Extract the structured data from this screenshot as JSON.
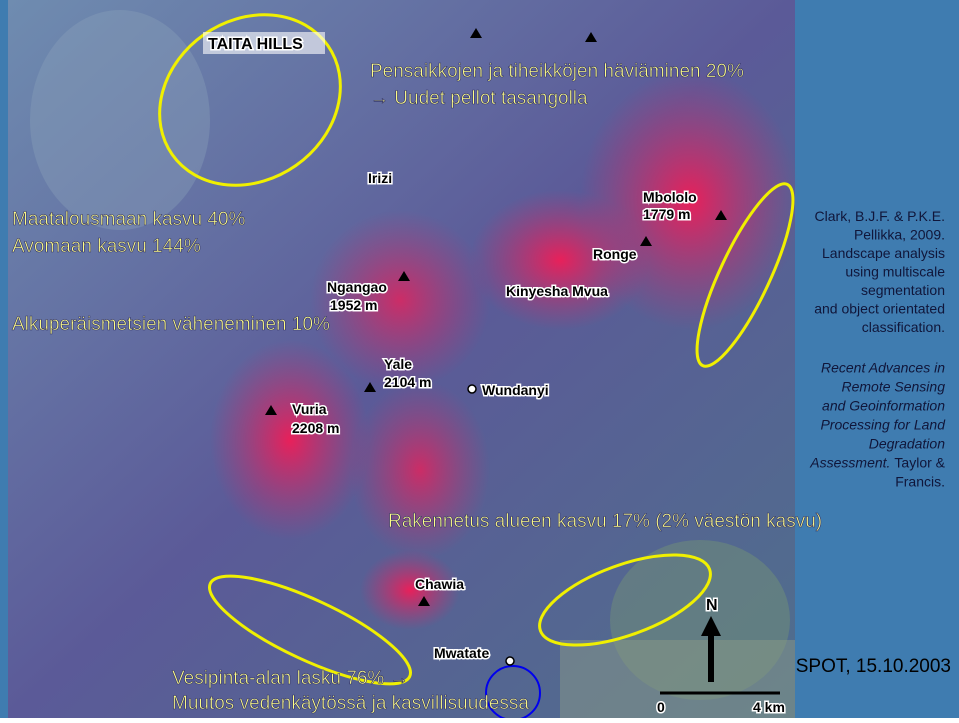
{
  "map": {
    "region_label": "TAITA HILLS",
    "places": [
      "Irizi",
      "Ngangao",
      "1952 m",
      "Yale",
      "2104 m",
      "Vuria",
      "2208 m",
      "Wundanyi",
      "Kinyesha Mvua",
      "Ronge",
      "Mbololo",
      "1779 m",
      "Chawia",
      "Mwatate"
    ],
    "north": "N",
    "scale": [
      "0",
      "4 km"
    ],
    "image_source": "SPOT, 15.10.2003"
  },
  "annotations": [
    "Pensaikkojen ja tiheikköjen häviäminen 20%",
    "→ Uudet pellot tasangolla",
    "Maatalousmaan kasvu 40%",
    "Avomaan kasvu 144%",
    "Alkuperäismetsien väheneminen 10%",
    "Rakennetus alueen kasvu 17% (2% väestön kasvu)",
    "Vesipinta-alan lasku 76% →",
    "Muutos vedenkäytössä ja kasvillisuudessa"
  ],
  "citation": {
    "lines": [
      "Clark, B.J.F. & P.K.E.",
      "Pellikka, 2009.",
      "Landscape analysis",
      "using multiscale",
      "segmentation",
      "and object orientated",
      "classification."
    ],
    "book_lines": [
      "Recent Advances in",
      "Remote Sensing",
      "and Geoinformation",
      "Processing for Land",
      "Degradation",
      "Assessment."
    ],
    "publisher_lines": [
      "Taylor &",
      "Francis."
    ]
  }
}
